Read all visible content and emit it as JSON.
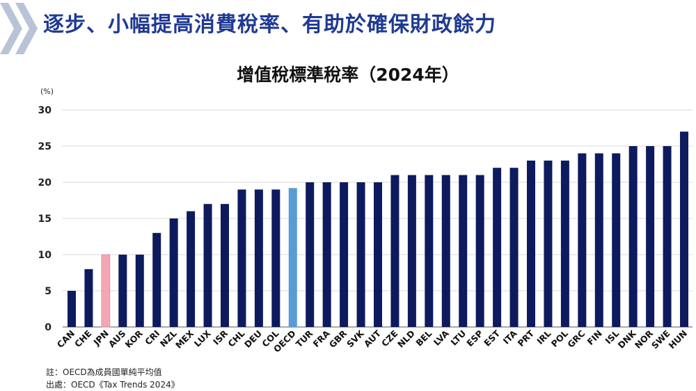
{
  "header": {
    "title": "逐步、小幅提高消費稅率、有助於確保財政餘力"
  },
  "colors": {
    "title_blue": "#1f3a93",
    "bar_navy": "#0d1b5e",
    "bar_japan": "#f2a7b5",
    "bar_oecd": "#5b9bd5",
    "chevron": "#b8c4d6"
  },
  "chart_data": {
    "type": "bar",
    "title": "增值稅標準稅率（2024年）",
    "unit_label": "(%)",
    "ylim": [
      0,
      30
    ],
    "yticks": [
      0,
      5,
      10,
      15,
      20,
      25,
      30
    ],
    "grid": true,
    "categories": [
      "CAN",
      "CHE",
      "JPN",
      "AUS",
      "KOR",
      "CRI",
      "NZL",
      "MEX",
      "LUX",
      "ISR",
      "CHL",
      "DEU",
      "COL",
      "OECD",
      "TUR",
      "FRA",
      "GBR",
      "SVK",
      "AUT",
      "CZE",
      "NLD",
      "BEL",
      "LVA",
      "LTU",
      "ESP",
      "EST",
      "ITA",
      "PRT",
      "IRL",
      "POL",
      "GRC",
      "FIN",
      "ISL",
      "DNK",
      "NOR",
      "SWE",
      "HUN"
    ],
    "values": [
      5,
      8,
      10,
      10,
      10,
      13,
      15,
      16,
      17,
      17,
      19,
      19,
      19,
      19.2,
      20,
      20,
      20,
      20,
      20,
      21,
      21,
      21,
      21,
      21,
      21,
      22,
      22,
      23,
      23,
      23,
      24,
      24,
      24,
      25,
      25,
      25,
      27
    ],
    "highlight": {
      "JPN": "japan",
      "OECD": "oecd"
    }
  },
  "footnotes": {
    "note": "註：OECD為成員國單純平均值",
    "source": "出處：OECD《Tax Trends 2024》"
  }
}
